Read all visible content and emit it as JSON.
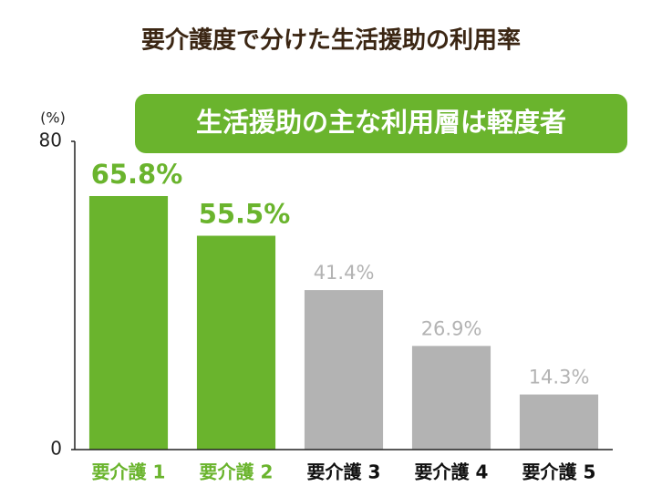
{
  "chart_data": {
    "type": "bar",
    "title": "要介護度で分けた生活援助の利用率",
    "annotation": "生活援助の主な利用層は軽度者",
    "y_label": "(%)",
    "categories": [
      "要介護 1",
      "要介護 2",
      "要介護 3",
      "要介護 4",
      "要介護 5"
    ],
    "values": [
      65.8,
      55.5,
      41.4,
      26.9,
      14.3
    ],
    "value_labels": [
      "65.8%",
      "55.5%",
      "41.4%",
      "26.9%",
      "14.3%"
    ],
    "colors": [
      "#6ab42d",
      "#6ab42d",
      "#b3b3b3",
      "#b3b3b3",
      "#b3b3b3"
    ],
    "ylim": [
      0,
      80
    ],
    "yticks": [
      0,
      80
    ],
    "grid": false
  }
}
